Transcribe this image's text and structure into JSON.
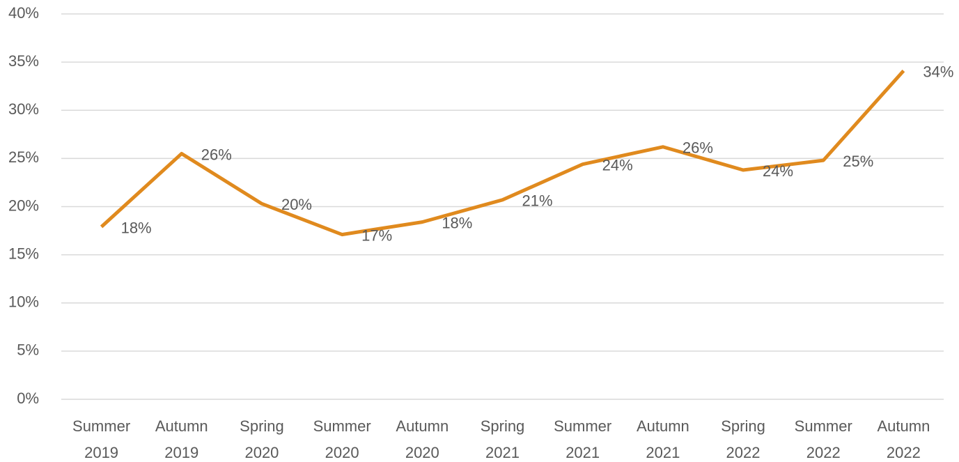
{
  "chart_data": {
    "type": "line",
    "categories": [
      "Summer 2019",
      "Autumn 2019",
      "Spring 2020",
      "Summer 2020",
      "Autumn 2020",
      "Spring 2021",
      "Summer 2021",
      "Autumn 2021",
      "Spring 2022",
      "Summer 2022",
      "Autumn 2022"
    ],
    "series": [
      {
        "color": "#e08a1e",
        "values": [
          17.9,
          25.5,
          20.3,
          17.1,
          18.4,
          20.7,
          24.4,
          26.2,
          23.8,
          24.8,
          34.1
        ],
        "value_labels": [
          "18%",
          "26%",
          "20%",
          "17%",
          "18%",
          "21%",
          "24%",
          "26%",
          "24%",
          "25%",
          "34%"
        ]
      }
    ],
    "ylim": [
      0,
      40
    ],
    "yticks": [
      {
        "value": 0,
        "label": "0%"
      },
      {
        "value": 5,
        "label": "5%"
      },
      {
        "value": 10,
        "label": "10%"
      },
      {
        "value": 15,
        "label": "15%"
      },
      {
        "value": 20,
        "label": "20%"
      },
      {
        "value": 25,
        "label": "25%"
      },
      {
        "value": 30,
        "label": "30%"
      },
      {
        "value": 35,
        "label": "35%"
      },
      {
        "value": 40,
        "label": "40%"
      }
    ],
    "grid": true
  }
}
